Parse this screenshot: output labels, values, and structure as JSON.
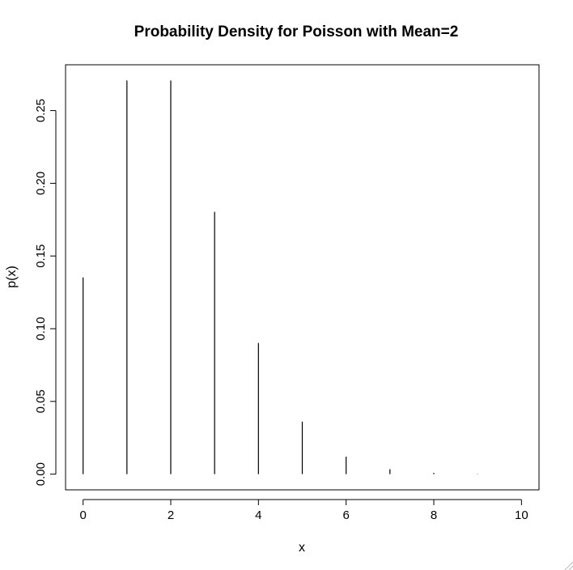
{
  "chart_data": {
    "type": "bar",
    "title": "Probability Density for Poisson with Mean=2",
    "xlabel": "x",
    "ylabel": "p(x)",
    "x": [
      0,
      1,
      2,
      3,
      4,
      5,
      6,
      7,
      8,
      9,
      10
    ],
    "values": [
      0.1353,
      0.2707,
      0.2707,
      0.1804,
      0.0902,
      0.0361,
      0.012,
      0.0034,
      0.0009,
      0.0002,
      4e-05
    ],
    "xlim": [
      -0.4,
      10.4
    ],
    "ylim": [
      -0.0108,
      0.2815
    ],
    "xticks": [
      0,
      2,
      4,
      6,
      8,
      10
    ],
    "xtick_labels": [
      "0",
      "2",
      "4",
      "6",
      "8",
      "10"
    ],
    "yticks": [
      0.0,
      0.05,
      0.1,
      0.15,
      0.2,
      0.25
    ],
    "ytick_labels": [
      "0.00",
      "0.05",
      "0.10",
      "0.15",
      "0.20",
      "0.25"
    ],
    "grid": false,
    "legend": "none"
  }
}
